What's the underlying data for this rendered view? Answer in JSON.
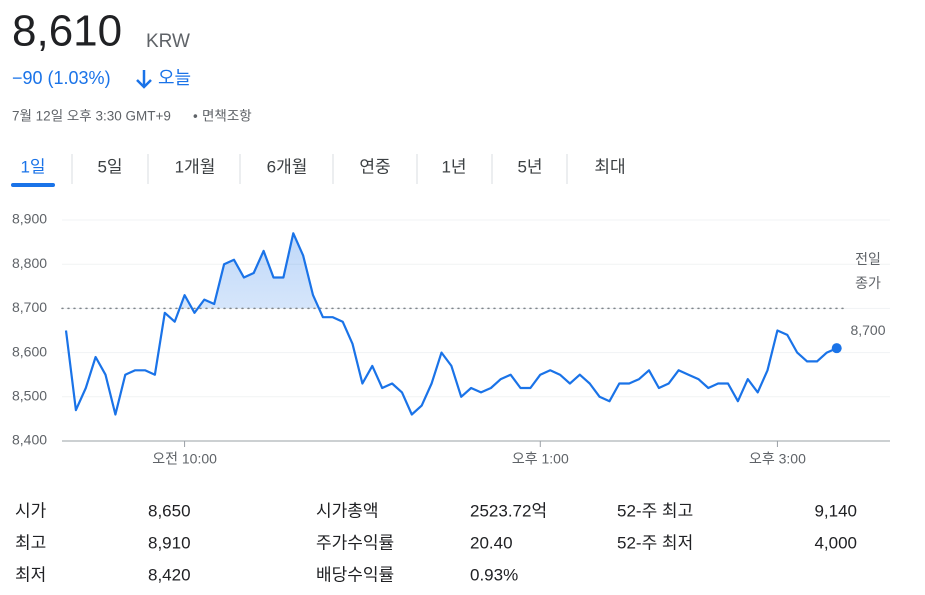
{
  "header": {
    "price": "8,610",
    "currency": "KRW",
    "change": "−90 (1.03%)",
    "change_period": "오늘",
    "timestamp": "7월 12일 오후 3:30 GMT+9",
    "disclaimer": "면책조항"
  },
  "tabs": [
    "1일",
    "5일",
    "1개월",
    "6개월",
    "연중",
    "1년",
    "5년",
    "최대"
  ],
  "selected_tab": 0,
  "chart_data": {
    "type": "line",
    "color": "#1a73e8",
    "grid": true,
    "values": [
      8650,
      8470,
      8520,
      8590,
      8550,
      8460,
      8550,
      8560,
      8560,
      8550,
      8690,
      8670,
      8730,
      8690,
      8720,
      8710,
      8800,
      8810,
      8770,
      8780,
      8830,
      8770,
      8770,
      8870,
      8820,
      8730,
      8680,
      8680,
      8670,
      8620,
      8530,
      8570,
      8520,
      8530,
      8510,
      8460,
      8480,
      8530,
      8600,
      8570,
      8500,
      8520,
      8510,
      8520,
      8540,
      8550,
      8520,
      8520,
      8550,
      8560,
      8550,
      8530,
      8550,
      8530,
      8500,
      8490,
      8530,
      8530,
      8540,
      8560,
      8520,
      8530,
      8560,
      8550,
      8540,
      8520,
      8530,
      8530,
      8490,
      8540,
      8510,
      8560,
      8650,
      8640,
      8600,
      8580,
      8580,
      8600,
      8610
    ],
    "xlim": [
      0,
      84
    ],
    "xticks": [
      {
        "value": 12,
        "label": "오전 10:00"
      },
      {
        "value": 48,
        "label": "오후 1:00"
      },
      {
        "value": 72,
        "label": "오후 3:00"
      }
    ],
    "ylim": [
      8400,
      8900
    ],
    "yticks": [
      {
        "value": 8400,
        "label": "8,400"
      },
      {
        "value": 8500,
        "label": "8,500"
      },
      {
        "value": 8600,
        "label": "8,600"
      },
      {
        "value": 8700,
        "label": "8,700"
      },
      {
        "value": 8800,
        "label": "8,800"
      },
      {
        "value": 8900,
        "label": "8,900"
      }
    ],
    "reference_line": {
      "value": 8700,
      "label_lines": [
        "전일",
        "종가"
      ],
      "value_label": "8,700"
    }
  },
  "stats": [
    [
      {
        "label": "시가",
        "value": "8,650"
      },
      {
        "label": "최고",
        "value": "8,910"
      },
      {
        "label": "최저",
        "value": "8,420"
      }
    ],
    [
      {
        "label": "시가총액",
        "value": "2523.72억"
      },
      {
        "label": "주가수익률",
        "value": "20.40"
      },
      {
        "label": "배당수익률",
        "value": "0.93%"
      }
    ],
    [
      {
        "label": "52-주 최고",
        "value": "9,140"
      },
      {
        "label": "52-주 최저",
        "value": "4,000"
      }
    ]
  ]
}
